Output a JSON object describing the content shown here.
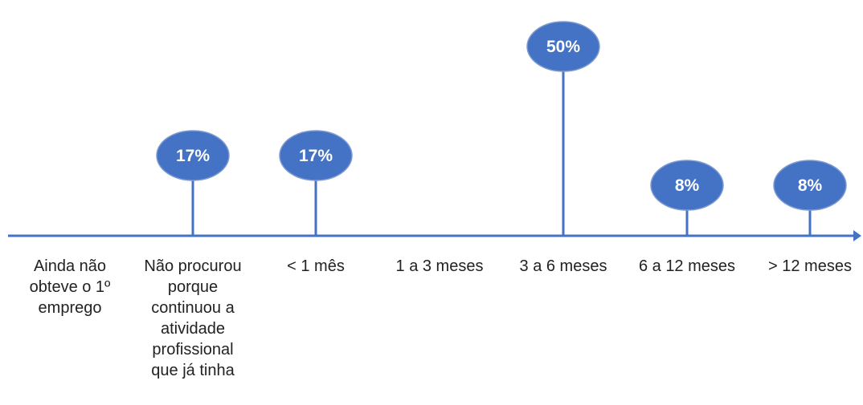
{
  "chart_data": {
    "type": "lollipop",
    "categories": [
      "Ainda não obteve o 1º emprego",
      "Não procurou porque continuou a atividade profissional que já tinha",
      "< 1  mês",
      "1  a  3 meses",
      "3  a  6 meses",
      "6  a 12 meses",
      "> 12 meses"
    ],
    "category_lines": [
      [
        "Ainda não",
        "obteve o 1º",
        "emprego"
      ],
      [
        "Não procurou",
        "porque",
        "continuou a",
        "atividade",
        "profissional",
        "que já tinha"
      ],
      [
        "< 1  mês"
      ],
      [
        "1  a  3 meses"
      ],
      [
        "3  a  6 meses"
      ],
      [
        "6  a 12 meses"
      ],
      [
        "> 12 meses"
      ]
    ],
    "values": [
      0,
      17,
      17,
      0,
      50,
      8,
      8
    ],
    "value_labels": [
      "",
      "17%",
      "17%",
      "",
      "50%",
      "8%",
      "8%"
    ],
    "title": "",
    "xlabel": "",
    "ylabel": "",
    "ylim": [
      0,
      50
    ],
    "grid": false,
    "colors": {
      "marker": "#4472C4",
      "stem": "#4472C4",
      "axis": "#4472C4",
      "marker_border": "#7F9BD0",
      "value_text": "#FFFFFF"
    }
  }
}
